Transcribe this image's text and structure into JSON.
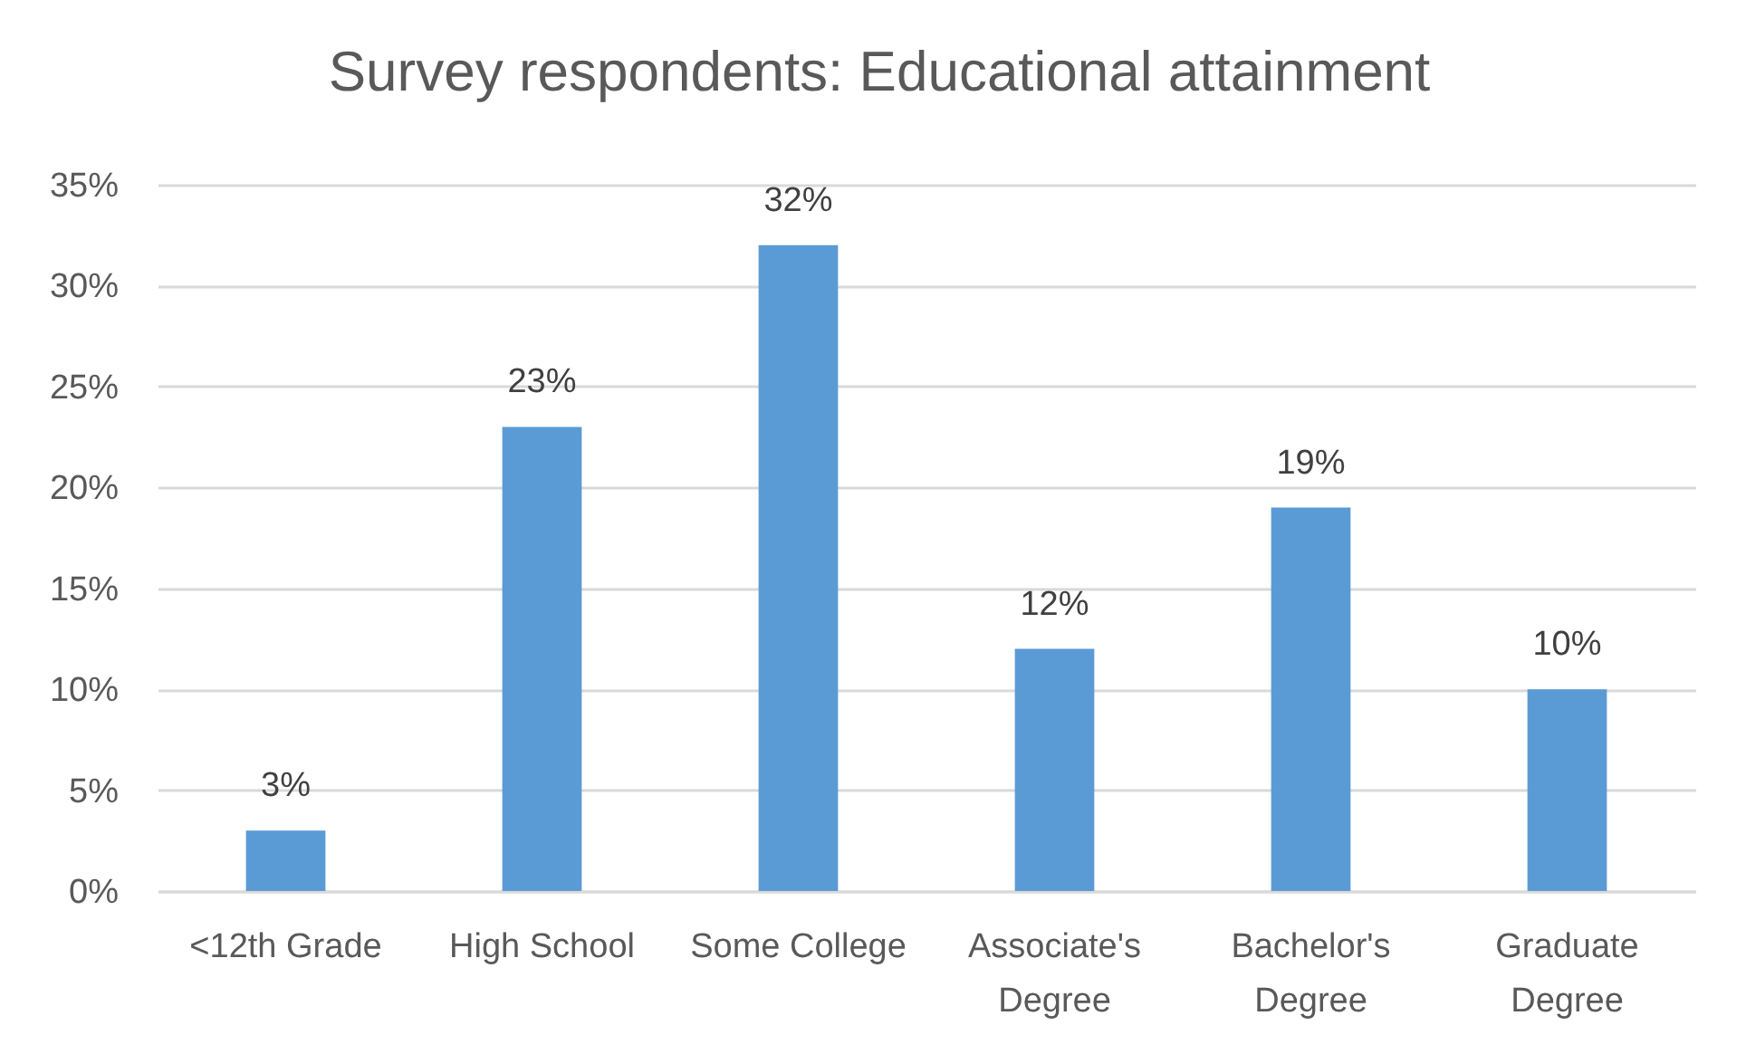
{
  "chart_data": {
    "type": "bar",
    "title": "Survey respondents: Educational attainment",
    "categories": [
      "<12th Grade",
      "High School",
      "Some College",
      "Associate's Degree",
      "Bachelor's Degree",
      "Graduate Degree"
    ],
    "values": [
      3,
      23,
      32,
      12,
      19,
      10
    ],
    "value_labels": [
      "3%",
      "23%",
      "32%",
      "12%",
      "19%",
      "10%"
    ],
    "color": "#5b9bd5",
    "ylim": [
      0,
      35
    ],
    "yticks": [
      {
        "value": 0,
        "label": "0%"
      },
      {
        "value": 5,
        "label": "5%"
      },
      {
        "value": 10,
        "label": "10%"
      },
      {
        "value": 15,
        "label": "15%"
      },
      {
        "value": 20,
        "label": "20%"
      },
      {
        "value": 25,
        "label": "25%"
      },
      {
        "value": 30,
        "label": "30%"
      },
      {
        "value": 35,
        "label": "35%"
      }
    ],
    "grid": "y"
  }
}
